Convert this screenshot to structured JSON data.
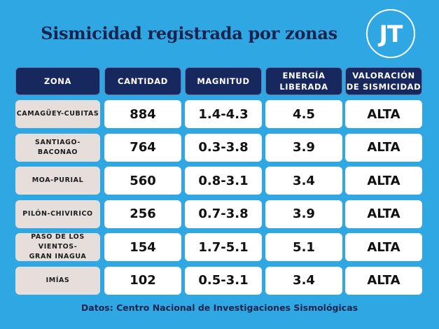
{
  "title": "Sismicidad registrada por zonas",
  "logo": "JT",
  "headers": [
    "ZONA",
    "CANTIDAD",
    "MAGNITUD",
    "ENERGÍA\nLIBERADA",
    "VALORACIÓN\nDE SISMICIDAD"
  ],
  "rows": [
    {
      "zona": "CAMAGÜEY-CUBITAS",
      "cantidad": "884",
      "magnitud": "1.4-4.3",
      "energia": "4.5",
      "valoracion": "ALTA"
    },
    {
      "zona": "SANTIAGO-\nBACONAO",
      "cantidad": "764",
      "magnitud": "0.3-3.8",
      "energia": "3.9",
      "valoracion": "ALTA"
    },
    {
      "zona": "MOA-PURIAL",
      "cantidad": "560",
      "magnitud": "0.8-3.1",
      "energia": "3.4",
      "valoracion": "ALTA"
    },
    {
      "zona": "PILÓN-CHIVIRICO",
      "cantidad": "256",
      "magnitud": "0.7-3.8",
      "energia": "3.9",
      "valoracion": "ALTA"
    },
    {
      "zona": "PASO DE LOS VIENTOS-\nGRAN INAGUA",
      "cantidad": "154",
      "magnitud": "1.7-5.1",
      "energia": "5.1",
      "valoracion": "ALTA"
    },
    {
      "zona": "IMÍAS",
      "cantidad": "102",
      "magnitud": "0.5-3.1",
      "energia": "3.4",
      "valoracion": "ALTA"
    }
  ],
  "source": "Datos: Centro Nacional de Investigaciones Sismológicas"
}
